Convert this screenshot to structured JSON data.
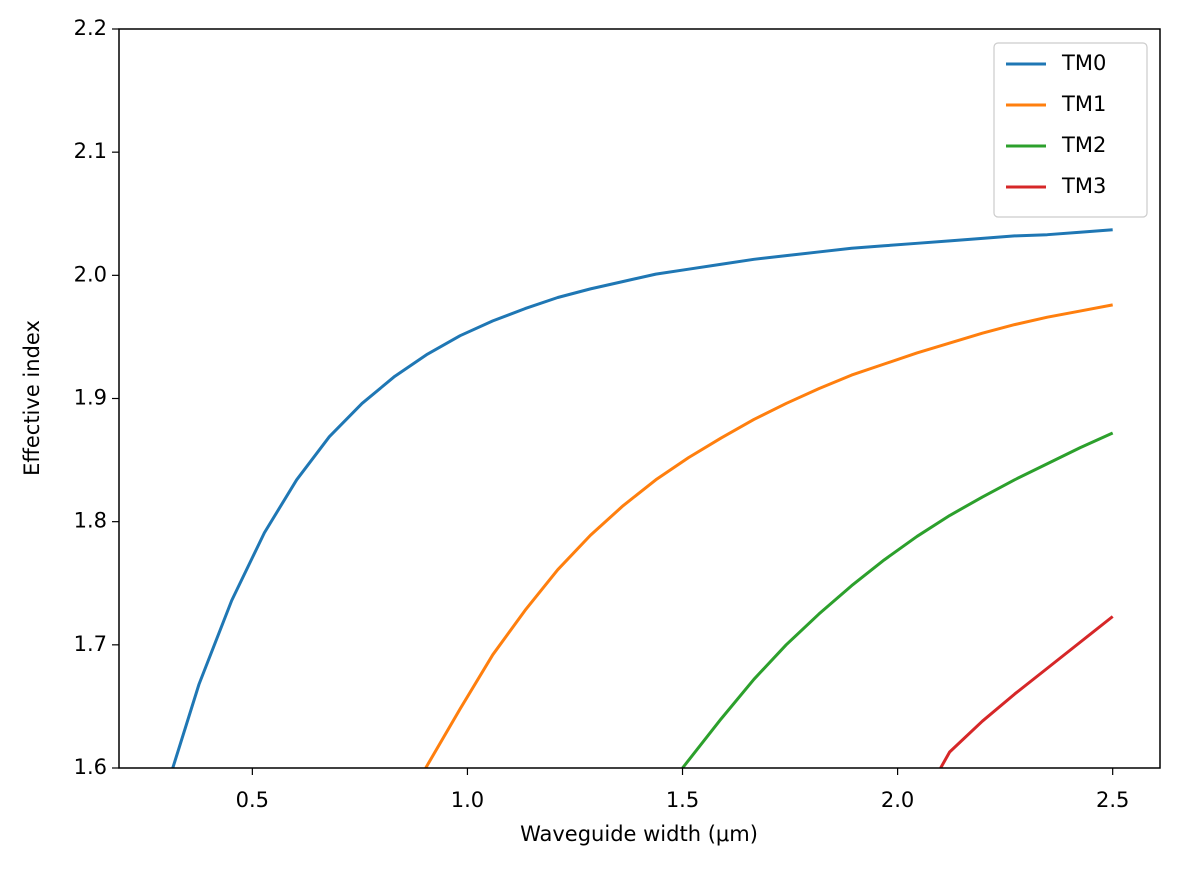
{
  "chart_data": {
    "type": "line",
    "x_label": "Waveguide width (μm)",
    "y_label": "Effective index",
    "xlim": [
      0.19,
      2.61
    ],
    "ylim": [
      1.6,
      2.2
    ],
    "xticks": [
      0.5,
      {
        "value": 1,
        "label": "1.0"
      },
      1.5,
      {
        "value": 2,
        "label": "2.0"
      },
      2.5
    ],
    "yticks": [
      1.6,
      1.7,
      1.8,
      1.9,
      {
        "value": 2,
        "label": "2.0"
      },
      2.1,
      2.2
    ],
    "legend": "upper right",
    "series": [
      {
        "name": "TM0",
        "color": "#1f77b4",
        "x": [
          0.315,
          0.376,
          0.452,
          0.528,
          0.603,
          0.679,
          0.755,
          0.831,
          0.907,
          0.983,
          1.059,
          1.134,
          1.21,
          1.286,
          1.362,
          1.438,
          1.514,
          1.59,
          1.666,
          1.741,
          1.817,
          1.893,
          1.969,
          2.045,
          2.121,
          2.197,
          2.272,
          2.348,
          2.424,
          2.5
        ],
        "values": [
          1.6,
          1.668,
          1.736,
          1.791,
          1.834,
          1.869,
          1.896,
          1.918,
          1.936,
          1.951,
          1.963,
          1.973,
          1.982,
          1.989,
          1.995,
          2.001,
          2.005,
          2.009,
          2.013,
          2.016,
          2.019,
          2.022,
          2.024,
          2.026,
          2.028,
          2.03,
          2.032,
          2.033,
          2.035,
          2.037
        ]
      },
      {
        "name": "TM1",
        "color": "#ff7f0e",
        "x": [
          0.903,
          0.983,
          1.059,
          1.134,
          1.21,
          1.286,
          1.362,
          1.438,
          1.514,
          1.59,
          1.666,
          1.741,
          1.817,
          1.893,
          1.969,
          2.045,
          2.121,
          2.197,
          2.272,
          2.348,
          2.424,
          2.5
        ],
        "values": [
          1.6,
          1.648,
          1.692,
          1.728,
          1.761,
          1.789,
          1.813,
          1.834,
          1.852,
          1.868,
          1.883,
          1.896,
          1.908,
          1.919,
          1.928,
          1.937,
          1.945,
          1.953,
          1.96,
          1.966,
          1.971,
          1.976
        ]
      },
      {
        "name": "TM2",
        "color": "#2ca02c",
        "x": [
          1.5,
          1.59,
          1.666,
          1.741,
          1.817,
          1.893,
          1.969,
          2.045,
          2.121,
          2.197,
          2.272,
          2.348,
          2.424,
          2.5
        ],
        "values": [
          1.6,
          1.64,
          1.672,
          1.7,
          1.725,
          1.748,
          1.769,
          1.788,
          1.805,
          1.82,
          1.834,
          1.847,
          1.86,
          1.872
        ]
      },
      {
        "name": "TM3",
        "color": "#d62728",
        "x": [
          2.1,
          2.121,
          2.197,
          2.272,
          2.348,
          2.424,
          2.5
        ],
        "values": [
          1.6,
          1.613,
          1.638,
          1.66,
          1.681,
          1.702,
          1.723
        ]
      }
    ]
  }
}
